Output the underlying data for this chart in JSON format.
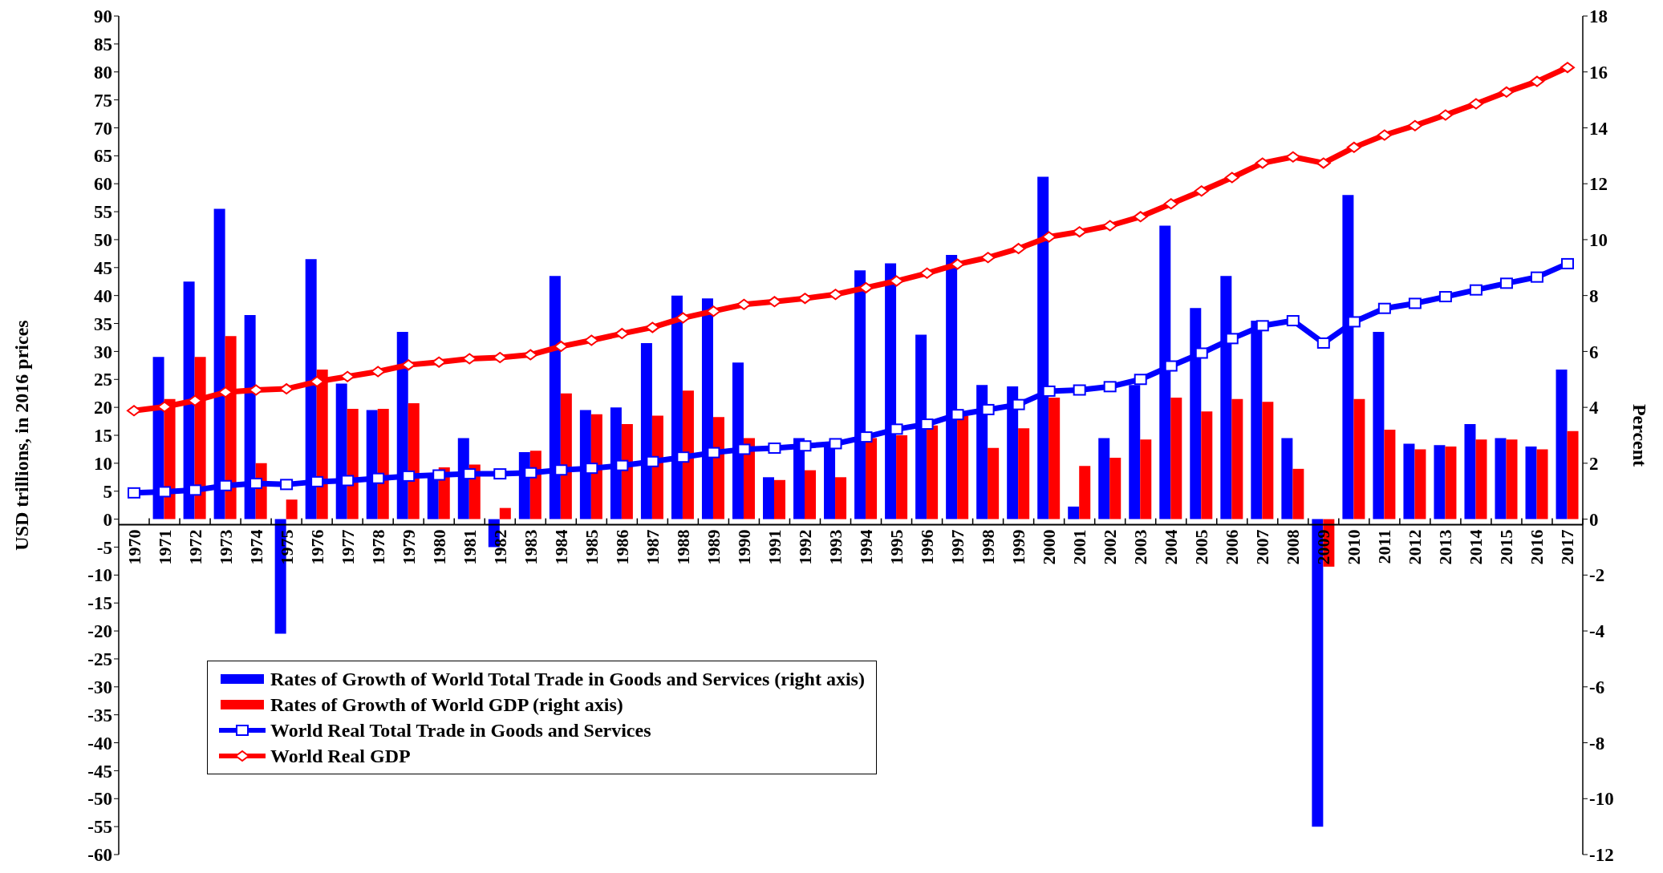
{
  "chart_data": {
    "type": "bar",
    "categories": [
      "1970",
      "1971",
      "1972",
      "1973",
      "1974",
      "1975",
      "1976",
      "1977",
      "1978",
      "1979",
      "1980",
      "1981",
      "1982",
      "1983",
      "1984",
      "1985",
      "1986",
      "1987",
      "1988",
      "1989",
      "1990",
      "1991",
      "1992",
      "1993",
      "1994",
      "1995",
      "1996",
      "1997",
      "1998",
      "1999",
      "2000",
      "2001",
      "2002",
      "2003",
      "2004",
      "2005",
      "2006",
      "2007",
      "2008",
      "2009",
      "2010",
      "2011",
      "2012",
      "2013",
      "2014",
      "2015",
      "2016",
      "2017"
    ],
    "series": [
      {
        "name": "Rates of Growth of World Total Trade in Goods and Services (right axis)",
        "axis": "y2",
        "color": "#0000ff",
        "values": [
          null,
          5.8,
          8.5,
          11.1,
          7.3,
          -4.1,
          9.3,
          4.85,
          3.9,
          6.7,
          1.6,
          2.9,
          -1.0,
          2.4,
          8.7,
          3.9,
          4.0,
          6.3,
          8.0,
          7.9,
          5.6,
          1.5,
          2.9,
          2.7,
          8.9,
          9.15,
          6.6,
          9.45,
          4.8,
          4.75,
          12.25,
          0.45,
          2.9,
          4.8,
          10.5,
          7.55,
          8.7,
          7.1,
          2.9,
          -11.0,
          11.6,
          6.7,
          2.7,
          2.65,
          3.4,
          2.9,
          2.6,
          5.35
        ]
      },
      {
        "name": "Rates of Growth of World GDP (right axis)",
        "axis": "y2",
        "color": "#ff0000",
        "values": [
          null,
          4.3,
          5.8,
          6.55,
          2.0,
          0.7,
          5.35,
          3.95,
          3.95,
          4.15,
          1.85,
          1.95,
          0.4,
          2.45,
          4.5,
          3.75,
          3.4,
          3.7,
          4.6,
          3.65,
          2.9,
          1.4,
          1.75,
          1.5,
          2.9,
          3.0,
          3.35,
          3.7,
          2.55,
          3.25,
          4.35,
          1.9,
          2.2,
          2.85,
          4.35,
          3.85,
          4.3,
          4.2,
          1.8,
          -1.7,
          4.3,
          3.2,
          2.5,
          2.6,
          2.85,
          2.85,
          2.5,
          3.15
        ]
      },
      {
        "name": "World Real Total Trade in Goods and Services",
        "type": "line",
        "marker": "square",
        "color": "#0000ff",
        "values": [
          4.7,
          4.9,
          5.2,
          6.0,
          6.4,
          6.2,
          6.7,
          6.9,
          7.3,
          7.7,
          7.9,
          8.1,
          8.1,
          8.3,
          8.8,
          9.1,
          9.6,
          10.3,
          11.1,
          11.9,
          12.5,
          12.7,
          13.1,
          13.5,
          14.7,
          16.1,
          17.0,
          18.7,
          19.6,
          20.5,
          22.9,
          23.1,
          23.7,
          25.0,
          27.4,
          29.7,
          32.3,
          34.6,
          35.5,
          31.5,
          35.3,
          37.7,
          38.6,
          39.8,
          41.0,
          42.2,
          43.3,
          45.7
        ]
      },
      {
        "name": "World Real GDP",
        "type": "line",
        "marker": "diamond",
        "color": "#ff0000",
        "values": [
          19.4,
          20.1,
          21.2,
          22.7,
          23.1,
          23.3,
          24.6,
          25.5,
          26.4,
          27.6,
          28.1,
          28.7,
          28.9,
          29.4,
          30.9,
          32.0,
          33.2,
          34.3,
          36.0,
          37.2,
          38.4,
          38.9,
          39.5,
          40.2,
          41.4,
          42.6,
          44.0,
          45.6,
          46.8,
          48.4,
          50.5,
          51.4,
          52.5,
          54.1,
          56.4,
          58.7,
          61.1,
          63.7,
          64.8,
          63.7,
          66.5,
          68.7,
          70.4,
          72.3,
          74.3,
          76.4,
          78.3,
          80.8
        ]
      }
    ],
    "ylabel": "USD trillions, in 2016 prices",
    "y2label": "Percent",
    "ylim": [
      -60,
      90
    ],
    "yticks": [
      -60,
      -55,
      -50,
      -45,
      -40,
      -35,
      -30,
      -25,
      -20,
      -15,
      -10,
      -5,
      0,
      5,
      10,
      15,
      20,
      25,
      30,
      35,
      40,
      45,
      50,
      55,
      60,
      65,
      70,
      75,
      80,
      85,
      90
    ],
    "y2lim": [
      -12,
      18
    ],
    "y2ticks": [
      -12,
      -10,
      -8,
      -6,
      -4,
      -2,
      0,
      2,
      4,
      6,
      8,
      10,
      12,
      14,
      16,
      18
    ],
    "legend": "bottom left",
    "line_style": "solid"
  }
}
